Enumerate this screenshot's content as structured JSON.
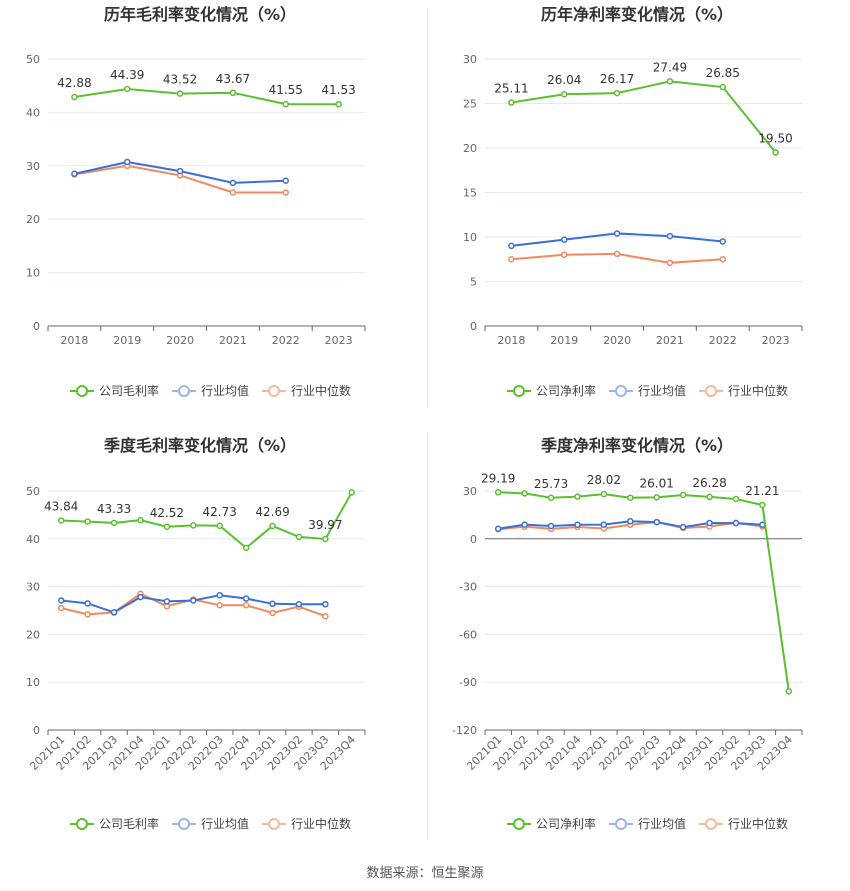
{
  "source_prefix": "数据来源：",
  "source_name": "恒生聚源",
  "colors": {
    "company": "#5ac02e",
    "industry_avg": "#3a6fd8",
    "industry_median": "#f08a5d",
    "legend_avg": "#9ab5ec",
    "legend_median": "#f5b9a0",
    "axis": "#666666",
    "grid": "#e6e9f2",
    "title": "#333333"
  },
  "chart_data": [
    {
      "type": "line",
      "title": "历年毛利率变化情况（%）",
      "categories": [
        "2018",
        "2019",
        "2020",
        "2021",
        "2022",
        "2023"
      ],
      "ylim": [
        0,
        50
      ],
      "yticks": [
        0,
        10,
        20,
        30,
        40,
        50
      ],
      "rotate_labels": false,
      "series": [
        {
          "name": "公司毛利率",
          "values": [
            42.88,
            44.39,
            43.52,
            43.67,
            41.55,
            41.53
          ],
          "labels": [
            "42.88",
            "44.39",
            "43.52",
            "43.67",
            "41.55",
            "41.53"
          ]
        },
        {
          "name": "行业均值",
          "values": [
            28.5,
            30.7,
            29.0,
            26.8,
            27.2,
            null
          ]
        },
        {
          "name": "行业中位数",
          "values": [
            28.4,
            30.0,
            28.2,
            25.0,
            25.0,
            null
          ]
        }
      ]
    },
    {
      "type": "line",
      "title": "历年净利率变化情况（%）",
      "categories": [
        "2018",
        "2019",
        "2020",
        "2021",
        "2022",
        "2023"
      ],
      "ylim": [
        0,
        30
      ],
      "yticks": [
        0,
        5,
        10,
        15,
        20,
        25,
        30
      ],
      "rotate_labels": false,
      "series": [
        {
          "name": "公司净利率",
          "values": [
            25.11,
            26.04,
            26.17,
            27.49,
            26.85,
            19.5
          ],
          "labels": [
            "25.11",
            "26.04",
            "26.17",
            "27.49",
            "26.85",
            "19.50"
          ]
        },
        {
          "name": "行业均值",
          "values": [
            9.0,
            9.7,
            10.4,
            10.1,
            9.5,
            null
          ]
        },
        {
          "name": "行业中位数",
          "values": [
            7.5,
            8.0,
            8.1,
            7.1,
            7.5,
            null
          ]
        }
      ]
    },
    {
      "type": "line",
      "title": "季度毛利率变化情况（%）",
      "categories": [
        "2021Q1",
        "2021Q2",
        "2021Q3",
        "2021Q4",
        "2022Q1",
        "2022Q2",
        "2022Q3",
        "2022Q4",
        "2023Q1",
        "2023Q2",
        "2023Q3",
        "2023Q4"
      ],
      "ylim": [
        0,
        50
      ],
      "yticks": [
        0,
        10,
        20,
        30,
        40,
        50
      ],
      "rotate_labels": true,
      "series": [
        {
          "name": "公司毛利率",
          "values": [
            43.84,
            43.6,
            43.33,
            43.9,
            42.52,
            42.8,
            42.73,
            38.1,
            42.69,
            40.4,
            39.97,
            49.7
          ],
          "labels": [
            "43.84",
            "",
            "43.33",
            "",
            "42.52",
            "",
            "42.73",
            "",
            "42.69",
            "",
            "39.97",
            ""
          ]
        },
        {
          "name": "行业均值",
          "values": [
            27.1,
            26.5,
            24.6,
            27.8,
            26.9,
            27.1,
            28.2,
            27.5,
            26.4,
            26.3,
            26.3,
            null
          ]
        },
        {
          "name": "行业中位数",
          "values": [
            25.5,
            24.2,
            24.6,
            28.5,
            25.9,
            27.3,
            26.1,
            26.1,
            24.5,
            25.8,
            23.8,
            null
          ]
        }
      ]
    },
    {
      "type": "line",
      "title": "季度净利率变化情况（%）",
      "categories": [
        "2021Q1",
        "2021Q2",
        "2021Q3",
        "2021Q4",
        "2022Q1",
        "2022Q2",
        "2022Q3",
        "2022Q4",
        "2023Q1",
        "2023Q2",
        "2023Q3",
        "2023Q4"
      ],
      "ylim": [
        -120,
        30
      ],
      "yticks": [
        -120,
        -90,
        -60,
        -30,
        0,
        30
      ],
      "rotate_labels": true,
      "series": [
        {
          "name": "公司净利率",
          "values": [
            29.19,
            28.5,
            25.73,
            26.5,
            28.02,
            25.8,
            26.01,
            27.5,
            26.28,
            25.0,
            21.21,
            -95.7
          ],
          "labels": [
            "29.19",
            "",
            "25.73",
            "",
            "28.02",
            "",
            "26.01",
            "",
            "26.28",
            "",
            "21.21",
            ""
          ]
        },
        {
          "name": "行业均值",
          "values": [
            6.3,
            8.9,
            8.0,
            8.8,
            8.9,
            11.0,
            10.5,
            7.3,
            9.9,
            9.8,
            8.8,
            null
          ]
        },
        {
          "name": "行业中位数",
          "values": [
            6.0,
            7.6,
            6.2,
            7.4,
            6.5,
            8.8,
            10.5,
            6.8,
            7.7,
            10.0,
            7.7,
            null
          ]
        }
      ]
    }
  ]
}
